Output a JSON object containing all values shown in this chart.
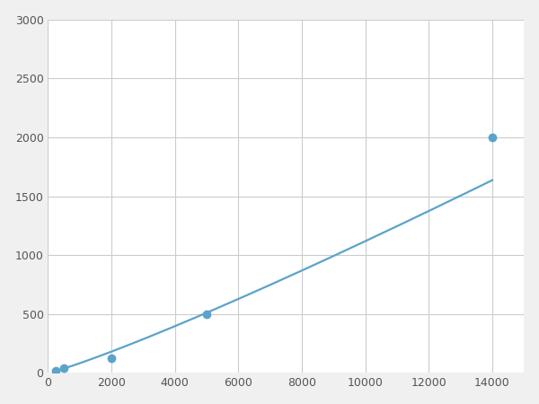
{
  "x_points": [
    250,
    500,
    2000,
    5000,
    14000
  ],
  "y_points": [
    20,
    40,
    125,
    500,
    2000
  ],
  "line_color": "#5ba3c9",
  "marker_color": "#5ba3c9",
  "marker_size": 6,
  "line_width": 1.6,
  "xlim": [
    0,
    15000
  ],
  "ylim": [
    0,
    3000
  ],
  "xticks": [
    0,
    2000,
    4000,
    6000,
    8000,
    10000,
    12000,
    14000
  ],
  "yticks": [
    0,
    500,
    1000,
    1500,
    2000,
    2500,
    3000
  ],
  "grid_color": "#cccccc",
  "background_color": "#ffffff",
  "fig_facecolor": "#f0f0f0"
}
